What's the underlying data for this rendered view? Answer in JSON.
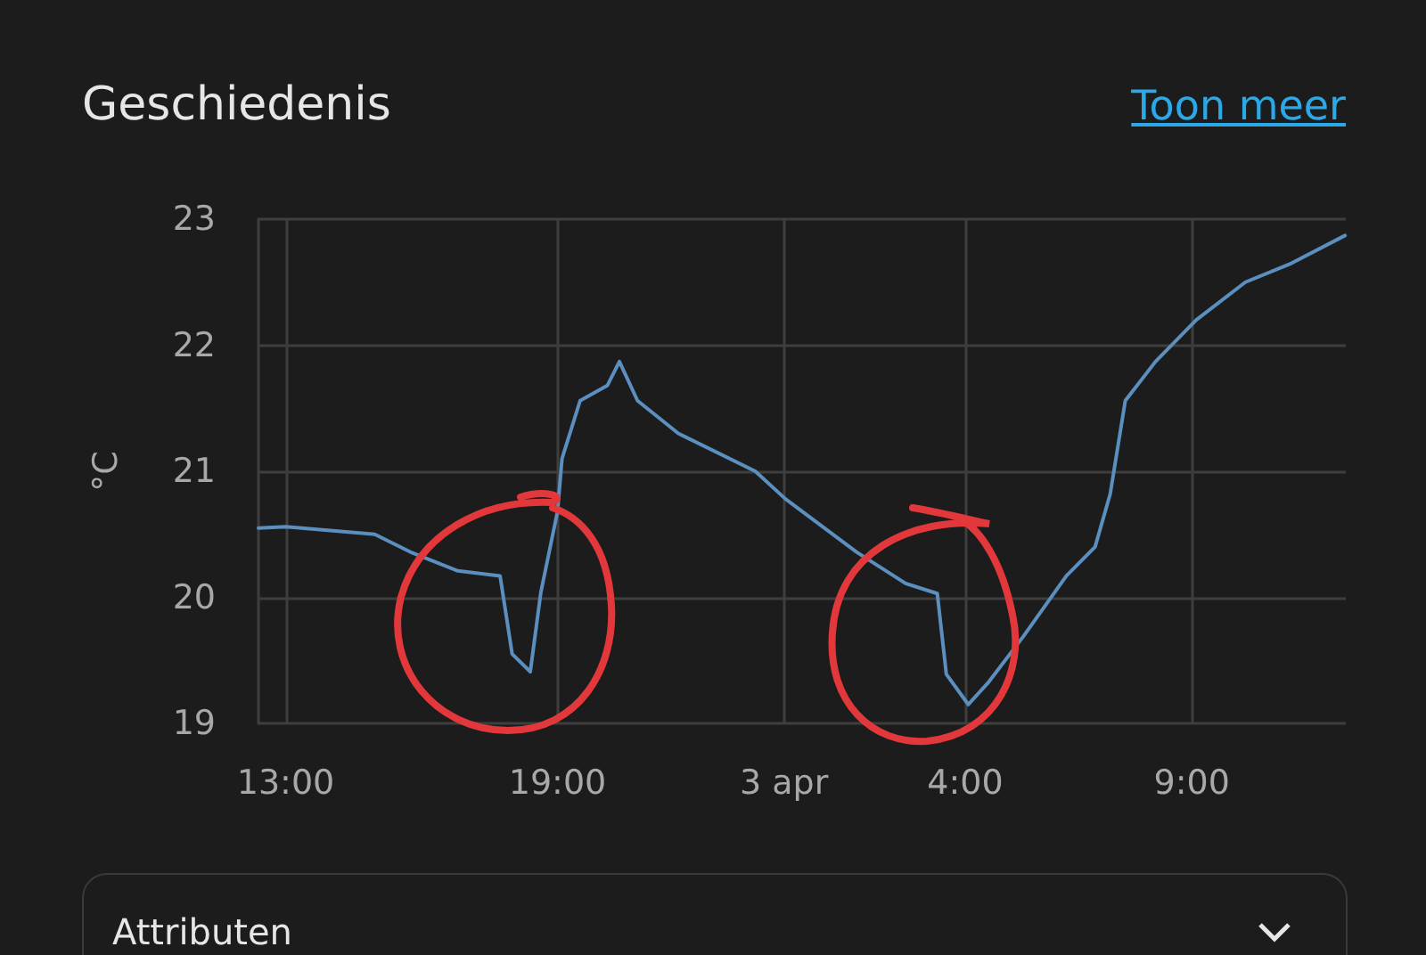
{
  "chart_data": {
    "type": "line",
    "title": "Geschiedenis",
    "ylabel": "°C",
    "annotations": [
      "Toon meer",
      "Attributen"
    ],
    "x": [
      "--04-02T12:24",
      "--04-02T13:00",
      "--04-02T14:58",
      "--04-02T15:45",
      "--04-02T16:48",
      "--04-02T17:44",
      "--04-02T18:00",
      "--04-02T18:24",
      "--04-02T18:38",
      "--04-02T19:00",
      "--04-02T19:06",
      "--04-02T19:30",
      "--04-02T20:06",
      "--04-02T20:22",
      "--04-02T20:46",
      "--04-02T21:40",
      "--04-02T23:22",
      "--04-03T00:02",
      "--04-03T01:36",
      "--04-03T02:41",
      "--04-03T03:23",
      "--04-03T03:35",
      "--04-03T04:04",
      "--04-03T04:30",
      "--04-03T05:17",
      "--04-03T06:14",
      "--04-03T06:52",
      "--04-03T07:12",
      "--04-03T07:32",
      "--04-03T08:12",
      "--04-03T09:06",
      "--04-03T10:11",
      "--04-03T11:12",
      "--04-03T12:23"
    ],
    "series": [
      {
        "color": "#5b8fbf",
        "values": [
          20.55,
          20.56,
          20.5,
          20.36,
          20.21,
          20.17,
          19.55,
          19.41,
          20.04,
          20.68,
          21.1,
          21.56,
          21.68,
          21.87,
          21.56,
          21.3,
          21.0,
          20.78,
          20.36,
          20.11,
          20.03,
          19.39,
          19.15,
          19.32,
          19.69,
          20.17,
          20.4,
          20.82,
          21.56,
          21.87,
          22.2,
          22.5,
          22.65,
          22.87
        ]
      }
    ],
    "xlim": [
      "--04-02T12:24",
      "--04-03T12:24"
    ],
    "xticks": [
      {
        "value": "--04-02T13:00",
        "label": "13:00"
      },
      {
        "value": "--04-02T19:00",
        "label": "19:00"
      },
      {
        "value": "--04-03T00:00",
        "label": "3 apr"
      },
      {
        "value": "--04-03T04:00",
        "label": "4:00"
      },
      {
        "value": "--04-03T09:00",
        "label": "9:00"
      }
    ],
    "ylim": [
      19,
      23
    ],
    "yticks": [
      19,
      20,
      21,
      22,
      23
    ],
    "grid": true,
    "marker": "none",
    "line_style": "solid"
  }
}
